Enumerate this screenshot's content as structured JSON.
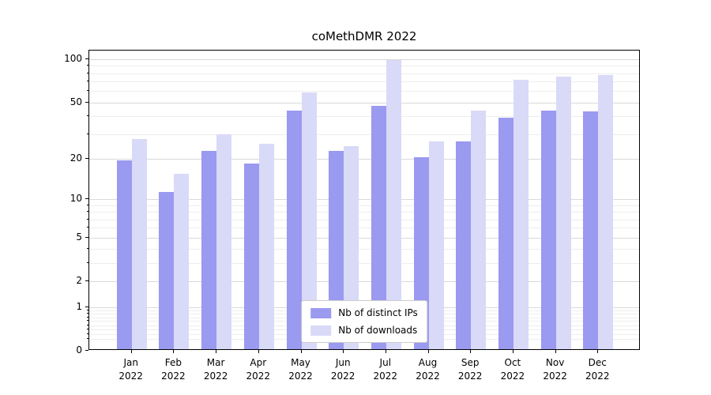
{
  "title": "coMethDMR 2022",
  "chart_data": {
    "type": "bar",
    "title": "coMethDMR 2022",
    "xlabel": "",
    "ylabel": "",
    "yscale": "log1p",
    "ylim_top": 115,
    "grid": true,
    "legend_position": "lower center",
    "y_major_ticks": [
      0,
      1,
      2,
      5,
      10,
      20,
      50,
      100
    ],
    "y_minor_ticks": [
      0.2,
      0.3,
      0.4,
      0.5,
      0.6,
      0.7,
      0.8,
      0.9,
      3,
      4,
      6,
      7,
      8,
      9,
      30,
      40,
      60,
      70,
      80,
      90
    ],
    "categories": [
      "Jan\n2022",
      "Feb\n2022",
      "Mar\n2022",
      "Apr\n2022",
      "May\n2022",
      "Jun\n2022",
      "Jul\n2022",
      "Aug\n2022",
      "Sep\n2022",
      "Oct\n2022",
      "Nov\n2022",
      "Dec\n2022"
    ],
    "series": [
      {
        "name": "Nb of distinct IPs",
        "color": "#9a9af0",
        "values": [
          19,
          11,
          22,
          18,
          43,
          22,
          46,
          20,
          26,
          38,
          43,
          42
        ]
      },
      {
        "name": "Nb of downloads",
        "color": "#d9d9f8",
        "values": [
          27,
          15,
          29,
          25,
          57,
          24,
          96,
          26,
          43,
          70,
          74,
          76
        ]
      }
    ]
  },
  "legend": {
    "entries": [
      {
        "label": "Nb of distinct IPs",
        "color": "#9a9af0"
      },
      {
        "label": "Nb of downloads",
        "color": "#d9d9f8"
      }
    ]
  },
  "colors": {
    "distinct_ips": "#9a9af0",
    "downloads": "#d9d9f8",
    "grid_major": "#d9d9d9",
    "grid_minor": "#ededed",
    "axis": "#000000",
    "legend_border": "#cccccc",
    "background": "#ffffff"
  }
}
